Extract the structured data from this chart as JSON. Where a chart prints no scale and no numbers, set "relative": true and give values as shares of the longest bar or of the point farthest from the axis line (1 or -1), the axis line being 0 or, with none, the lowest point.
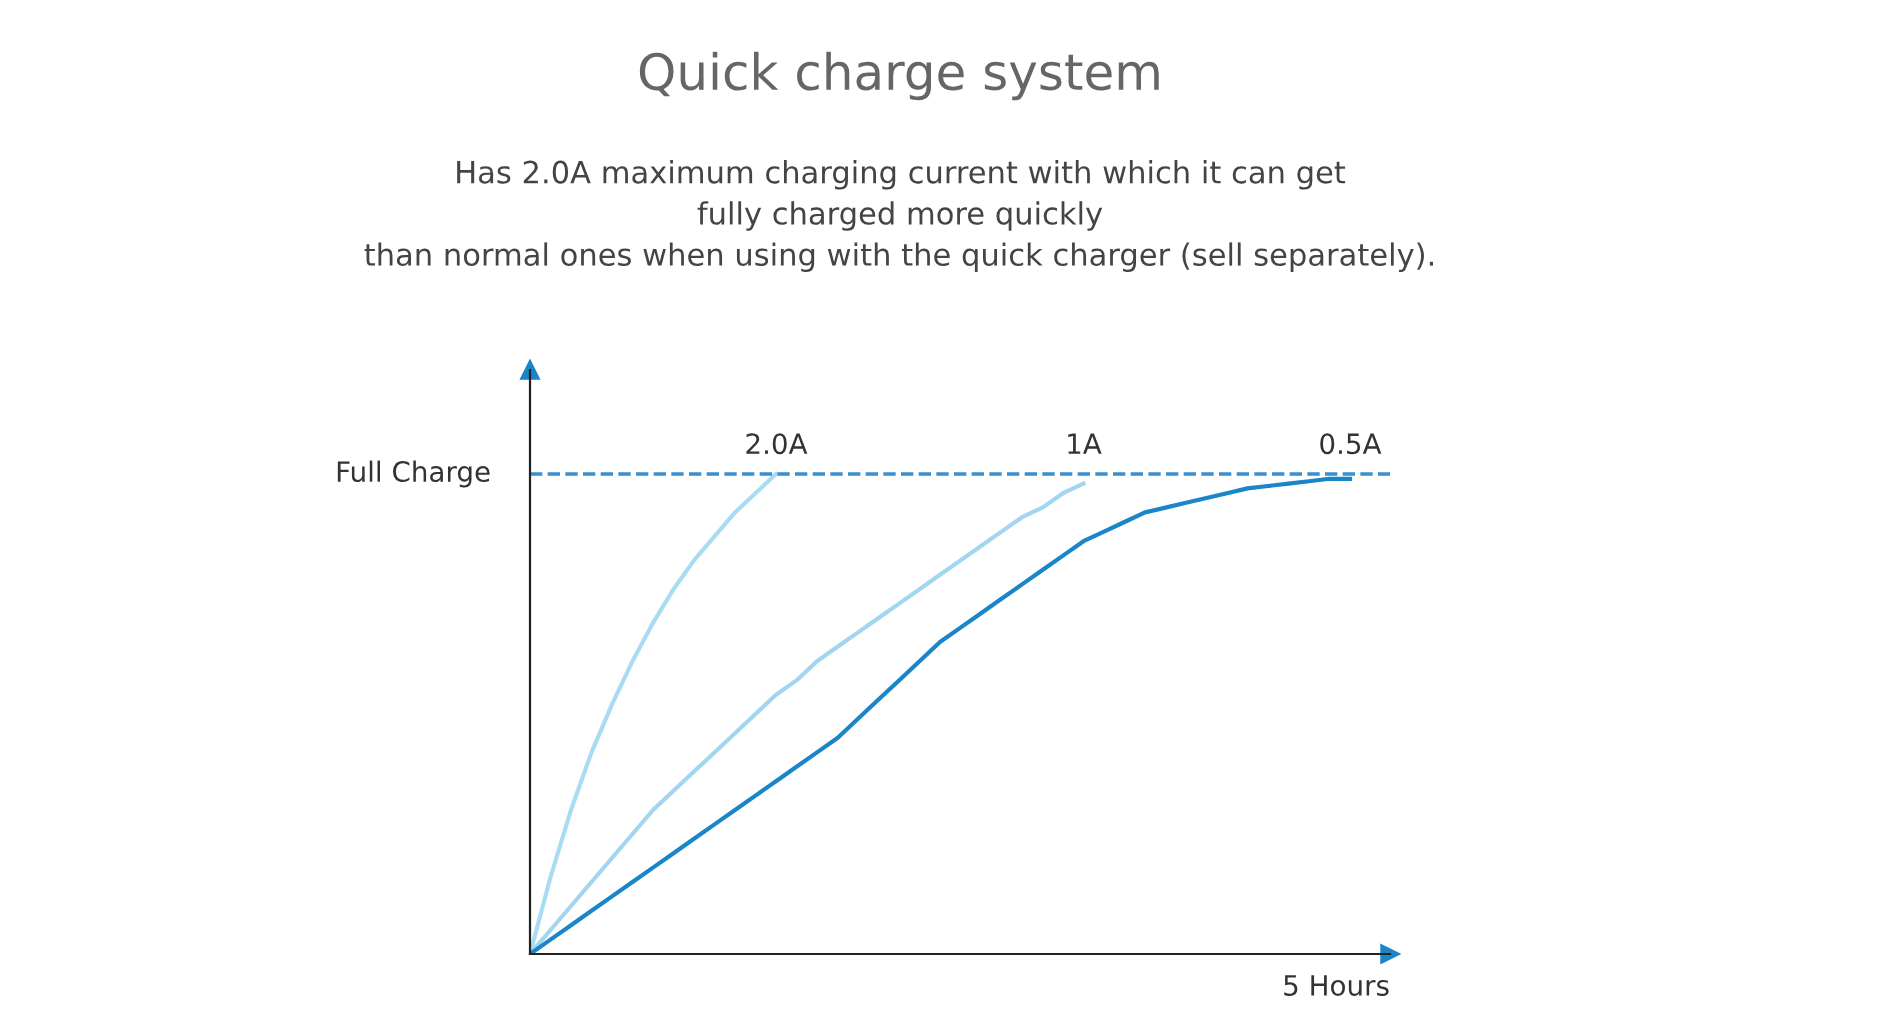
{
  "chart_data": {
    "type": "line",
    "title": "Quick charge system",
    "subtitle": "Has 2.0A maximum charging current with which it can get\nfully charged more quickly\nthan normal ones when using with the quick charger (sell separately).",
    "xlabel": "5 Hours",
    "relative": true,
    "line_style": "solid",
    "marker": "none",
    "legend": false,
    "categories": [
      null,
      null,
      null,
      null,
      null,
      null,
      null,
      null,
      null,
      null,
      null,
      null,
      null,
      null,
      null,
      null,
      null,
      null,
      null,
      null,
      null,
      null,
      null,
      null,
      null,
      null,
      null,
      null,
      null,
      null,
      null,
      null,
      null,
      null,
      null,
      null,
      null,
      null,
      null,
      null,
      null
    ],
    "series": [
      {
        "name": "2.0A",
        "color": "#a9dcf3",
        "values": [
          0,
          0.16,
          0.3,
          0.42,
          0.52,
          0.61,
          0.69,
          0.76,
          0.82,
          0.87,
          0.92,
          0.96,
          1.0,
          null,
          null,
          null,
          null,
          null,
          null,
          null,
          null,
          null,
          null,
          null,
          null,
          null,
          null,
          null,
          null,
          null,
          null,
          null,
          null,
          null,
          null,
          null,
          null,
          null,
          null,
          null,
          null
        ]
      },
      {
        "name": "1A",
        "color": "#a2d6f0",
        "values": [
          0,
          0.05,
          0.1,
          0.15,
          0.2,
          0.25,
          0.3,
          0.34,
          0.38,
          0.42,
          0.46,
          0.5,
          0.54,
          0.57,
          0.61,
          0.64,
          0.67,
          0.7,
          0.73,
          0.76,
          0.79,
          0.82,
          0.85,
          0.88,
          0.91,
          0.93,
          0.96,
          0.98,
          null,
          null,
          null,
          null,
          null,
          null,
          null,
          null,
          null,
          null,
          null,
          null,
          null
        ]
      },
      {
        "name": "0.5A",
        "color": "#1a85c8",
        "values": [
          0,
          0.03,
          0.06,
          0.09,
          0.12,
          0.15,
          0.18,
          0.21,
          0.24,
          0.27,
          0.3,
          0.33,
          0.36,
          0.39,
          0.42,
          0.45,
          0.49,
          0.53,
          0.57,
          0.61,
          0.65,
          0.68,
          0.71,
          0.74,
          0.77,
          0.8,
          0.83,
          0.86,
          0.88,
          0.9,
          0.92,
          0.93,
          0.94,
          0.95,
          0.96,
          0.97,
          0.975,
          0.98,
          0.985,
          0.99,
          0.99
        ]
      }
    ],
    "ref_lines": [
      {
        "axis": "y",
        "value": 1,
        "label": "Full Charge",
        "color": "#3a8fcf",
        "line_style": "dashed"
      }
    ]
  }
}
